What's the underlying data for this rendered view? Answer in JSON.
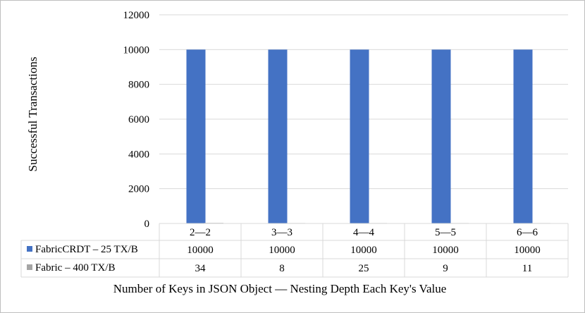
{
  "chart_data": {
    "type": "bar",
    "title": "",
    "ylabel": "Successful Transactions",
    "xlabel": "Number of Keys in JSON Object — Nesting Depth Each Key's Value",
    "ylim": [
      0,
      12000
    ],
    "yticks": [
      0,
      2000,
      4000,
      6000,
      8000,
      10000,
      12000
    ],
    "categories": [
      "2—2",
      "3—3",
      "4—4",
      "5—5",
      "6—6"
    ],
    "series": [
      {
        "name": "FabricCRDT – 25 TX/B",
        "color": "#4472c4",
        "values": [
          10000,
          10000,
          10000,
          10000,
          10000
        ]
      },
      {
        "name": "Fabric – 400 TX/B",
        "color": "#a5a5a5",
        "values": [
          34,
          8,
          25,
          9,
          11
        ]
      }
    ],
    "grid": true,
    "legend": "data-table"
  }
}
